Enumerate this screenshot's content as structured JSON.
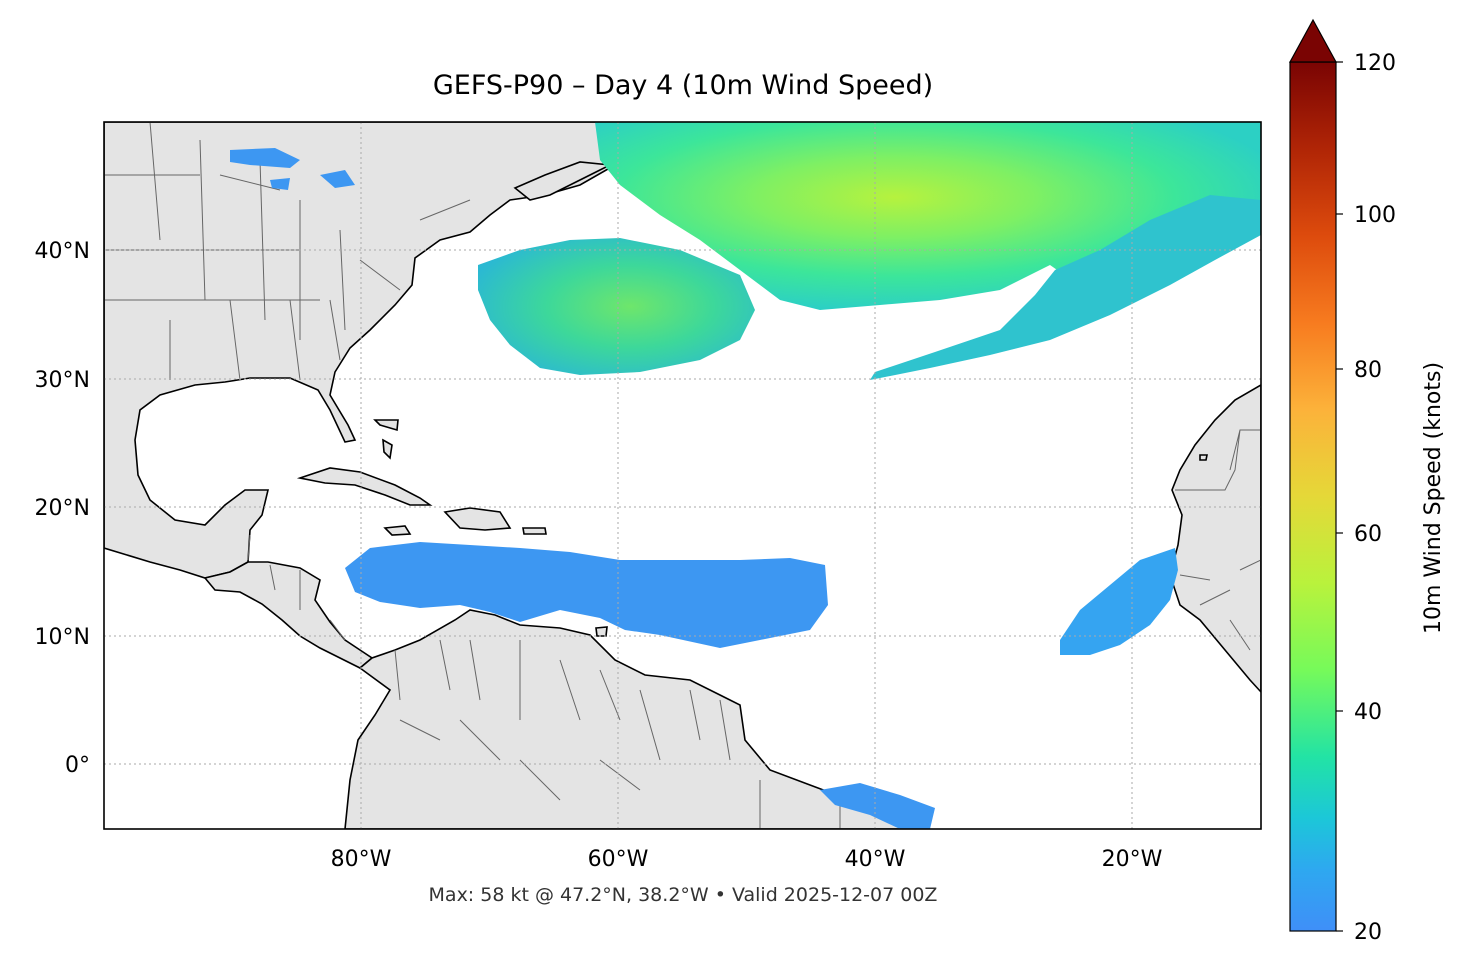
{
  "title": "GEFS-P90 – Day 4 (10m Wind Speed)",
  "subtitle": "Max: 58 kt @ 47.2°N, 38.2°W • Valid 2025-12-07 00Z",
  "map": {
    "lon_range": [
      -100,
      -10
    ],
    "lat_range": [
      -5,
      50
    ],
    "lon_ticks": [
      {
        "lon": -80,
        "label": "80°W"
      },
      {
        "lon": -60,
        "label": "60°W"
      },
      {
        "lon": -40,
        "label": "40°W"
      },
      {
        "lon": -20,
        "label": "20°W"
      }
    ],
    "lat_ticks": [
      {
        "lat": 40,
        "label": "40°N"
      },
      {
        "lat": 30,
        "label": "30°N"
      },
      {
        "lat": 20,
        "label": "20°N"
      },
      {
        "lat": 10,
        "label": "10°N"
      },
      {
        "lat": 0,
        "label": "0°"
      }
    ],
    "gridlines": true,
    "land_color": "#e4e4e4",
    "ocean_color": "#ffffff"
  },
  "colorbar": {
    "label": "10m Wind Speed (knots)",
    "min": 20,
    "max": 120,
    "ticks": [
      {
        "value": 20,
        "label": "20"
      },
      {
        "value": 40,
        "label": "40"
      },
      {
        "value": 60,
        "label": "60"
      },
      {
        "value": 80,
        "label": "80"
      },
      {
        "value": 100,
        "label": "100"
      },
      {
        "value": 120,
        "label": "120"
      }
    ],
    "extend": "max",
    "colormap": "turbo"
  },
  "wind_max": {
    "value_kt": 58,
    "lat": 47.2,
    "lon": -38.2
  }
}
